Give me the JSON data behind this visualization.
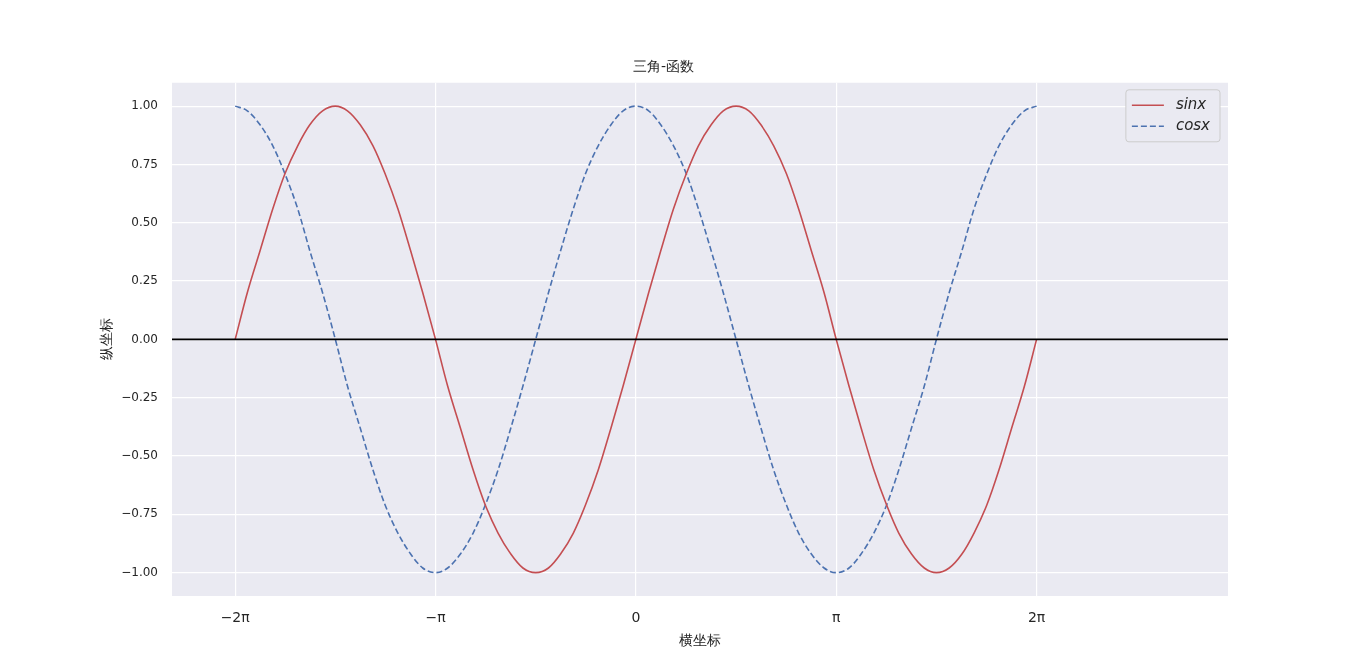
{
  "chart_data": {
    "type": "line",
    "title": "三角-函数",
    "xlabel": "横坐标",
    "ylabel": "纵坐标",
    "x": [
      -6.28,
      -6.09,
      -5.89,
      -5.69,
      -5.5,
      -5.3,
      -5.11,
      -4.91,
      -4.71,
      -4.52,
      -4.32,
      -4.12,
      -3.93,
      -3.73,
      -3.53,
      -3.34,
      -3.14,
      -2.95,
      -2.75,
      -2.55,
      -2.36,
      -2.16,
      -1.96,
      -1.77,
      -1.57,
      -1.37,
      -1.18,
      -0.98,
      -0.79,
      -0.59,
      -0.39,
      -0.2,
      0,
      0.2,
      0.39,
      0.59,
      0.79,
      0.98,
      1.18,
      1.37,
      1.57,
      1.77,
      1.96,
      2.16,
      2.36,
      2.55,
      2.75,
      2.95,
      3.14,
      3.34,
      3.53,
      3.73,
      3.93,
      4.12,
      4.32,
      4.52,
      4.71,
      4.91,
      5.11,
      5.3,
      5.5,
      5.69,
      5.89,
      6.09,
      6.28
    ],
    "series": [
      {
        "name": "sinx",
        "color": "#c44e52",
        "line_style": "solid",
        "values": [
          0,
          0.2,
          0.38,
          0.56,
          0.71,
          0.83,
          0.92,
          0.98,
          1,
          0.98,
          0.92,
          0.83,
          0.71,
          0.56,
          0.38,
          0.2,
          0,
          -0.2,
          -0.38,
          -0.56,
          -0.71,
          -0.83,
          -0.92,
          -0.98,
          -1,
          -0.98,
          -0.92,
          -0.83,
          -0.71,
          -0.56,
          -0.38,
          -0.2,
          0,
          0.2,
          0.38,
          0.56,
          0.71,
          0.83,
          0.92,
          0.98,
          1,
          0.98,
          0.92,
          0.83,
          0.71,
          0.56,
          0.38,
          0.2,
          0,
          -0.2,
          -0.38,
          -0.56,
          -0.71,
          -0.83,
          -0.92,
          -0.98,
          -1,
          -0.98,
          -0.92,
          -0.83,
          -0.71,
          -0.56,
          -0.38,
          -0.2,
          0
        ]
      },
      {
        "name": "cosx",
        "color": "#4c72b0",
        "line_style": "dashed",
        "values": [
          1,
          0.98,
          0.92,
          0.83,
          0.71,
          0.56,
          0.38,
          0.2,
          0,
          -0.2,
          -0.38,
          -0.56,
          -0.71,
          -0.83,
          -0.92,
          -0.98,
          -1,
          -0.98,
          -0.92,
          -0.83,
          -0.71,
          -0.56,
          -0.38,
          -0.2,
          0,
          0.2,
          0.38,
          0.56,
          0.71,
          0.83,
          0.92,
          0.98,
          1,
          0.98,
          0.92,
          0.83,
          0.71,
          0.56,
          0.38,
          0.2,
          0,
          -0.2,
          -0.38,
          -0.56,
          -0.71,
          -0.83,
          -0.92,
          -0.98,
          -1,
          -0.98,
          -0.92,
          -0.83,
          -0.71,
          -0.56,
          -0.38,
          -0.2,
          0,
          0.2,
          0.38,
          0.56,
          0.71,
          0.83,
          0.92,
          0.98,
          1
        ]
      }
    ],
    "xlim": [
      -7.27,
      9.28
    ],
    "xticks": [
      {
        "value": -6.28,
        "label": "−2π"
      },
      {
        "value": -3.14,
        "label": "−π"
      },
      0,
      {
        "value": 3.14,
        "label": "π"
      },
      {
        "value": 6.28,
        "label": "2π"
      }
    ],
    "ylim": [
      -1.1,
      1.1
    ],
    "yticks": [
      {
        "value": -1,
        "label": "−1.00"
      },
      {
        "value": -0.75,
        "label": "−0.75"
      },
      {
        "value": -0.5,
        "label": "−0.50"
      },
      {
        "value": -0.25,
        "label": "−0.25"
      },
      {
        "value": 0,
        "label": "0.00"
      },
      {
        "value": 0.25,
        "label": "0.25"
      },
      {
        "value": 0.5,
        "label": "0.50"
      },
      {
        "value": 0.75,
        "label": "0.75"
      },
      {
        "value": 1,
        "label": "1.00"
      }
    ],
    "ref_lines": [
      {
        "axis": "y",
        "value": 0,
        "color": "#000000"
      }
    ],
    "grid": true,
    "legend": "top right"
  }
}
